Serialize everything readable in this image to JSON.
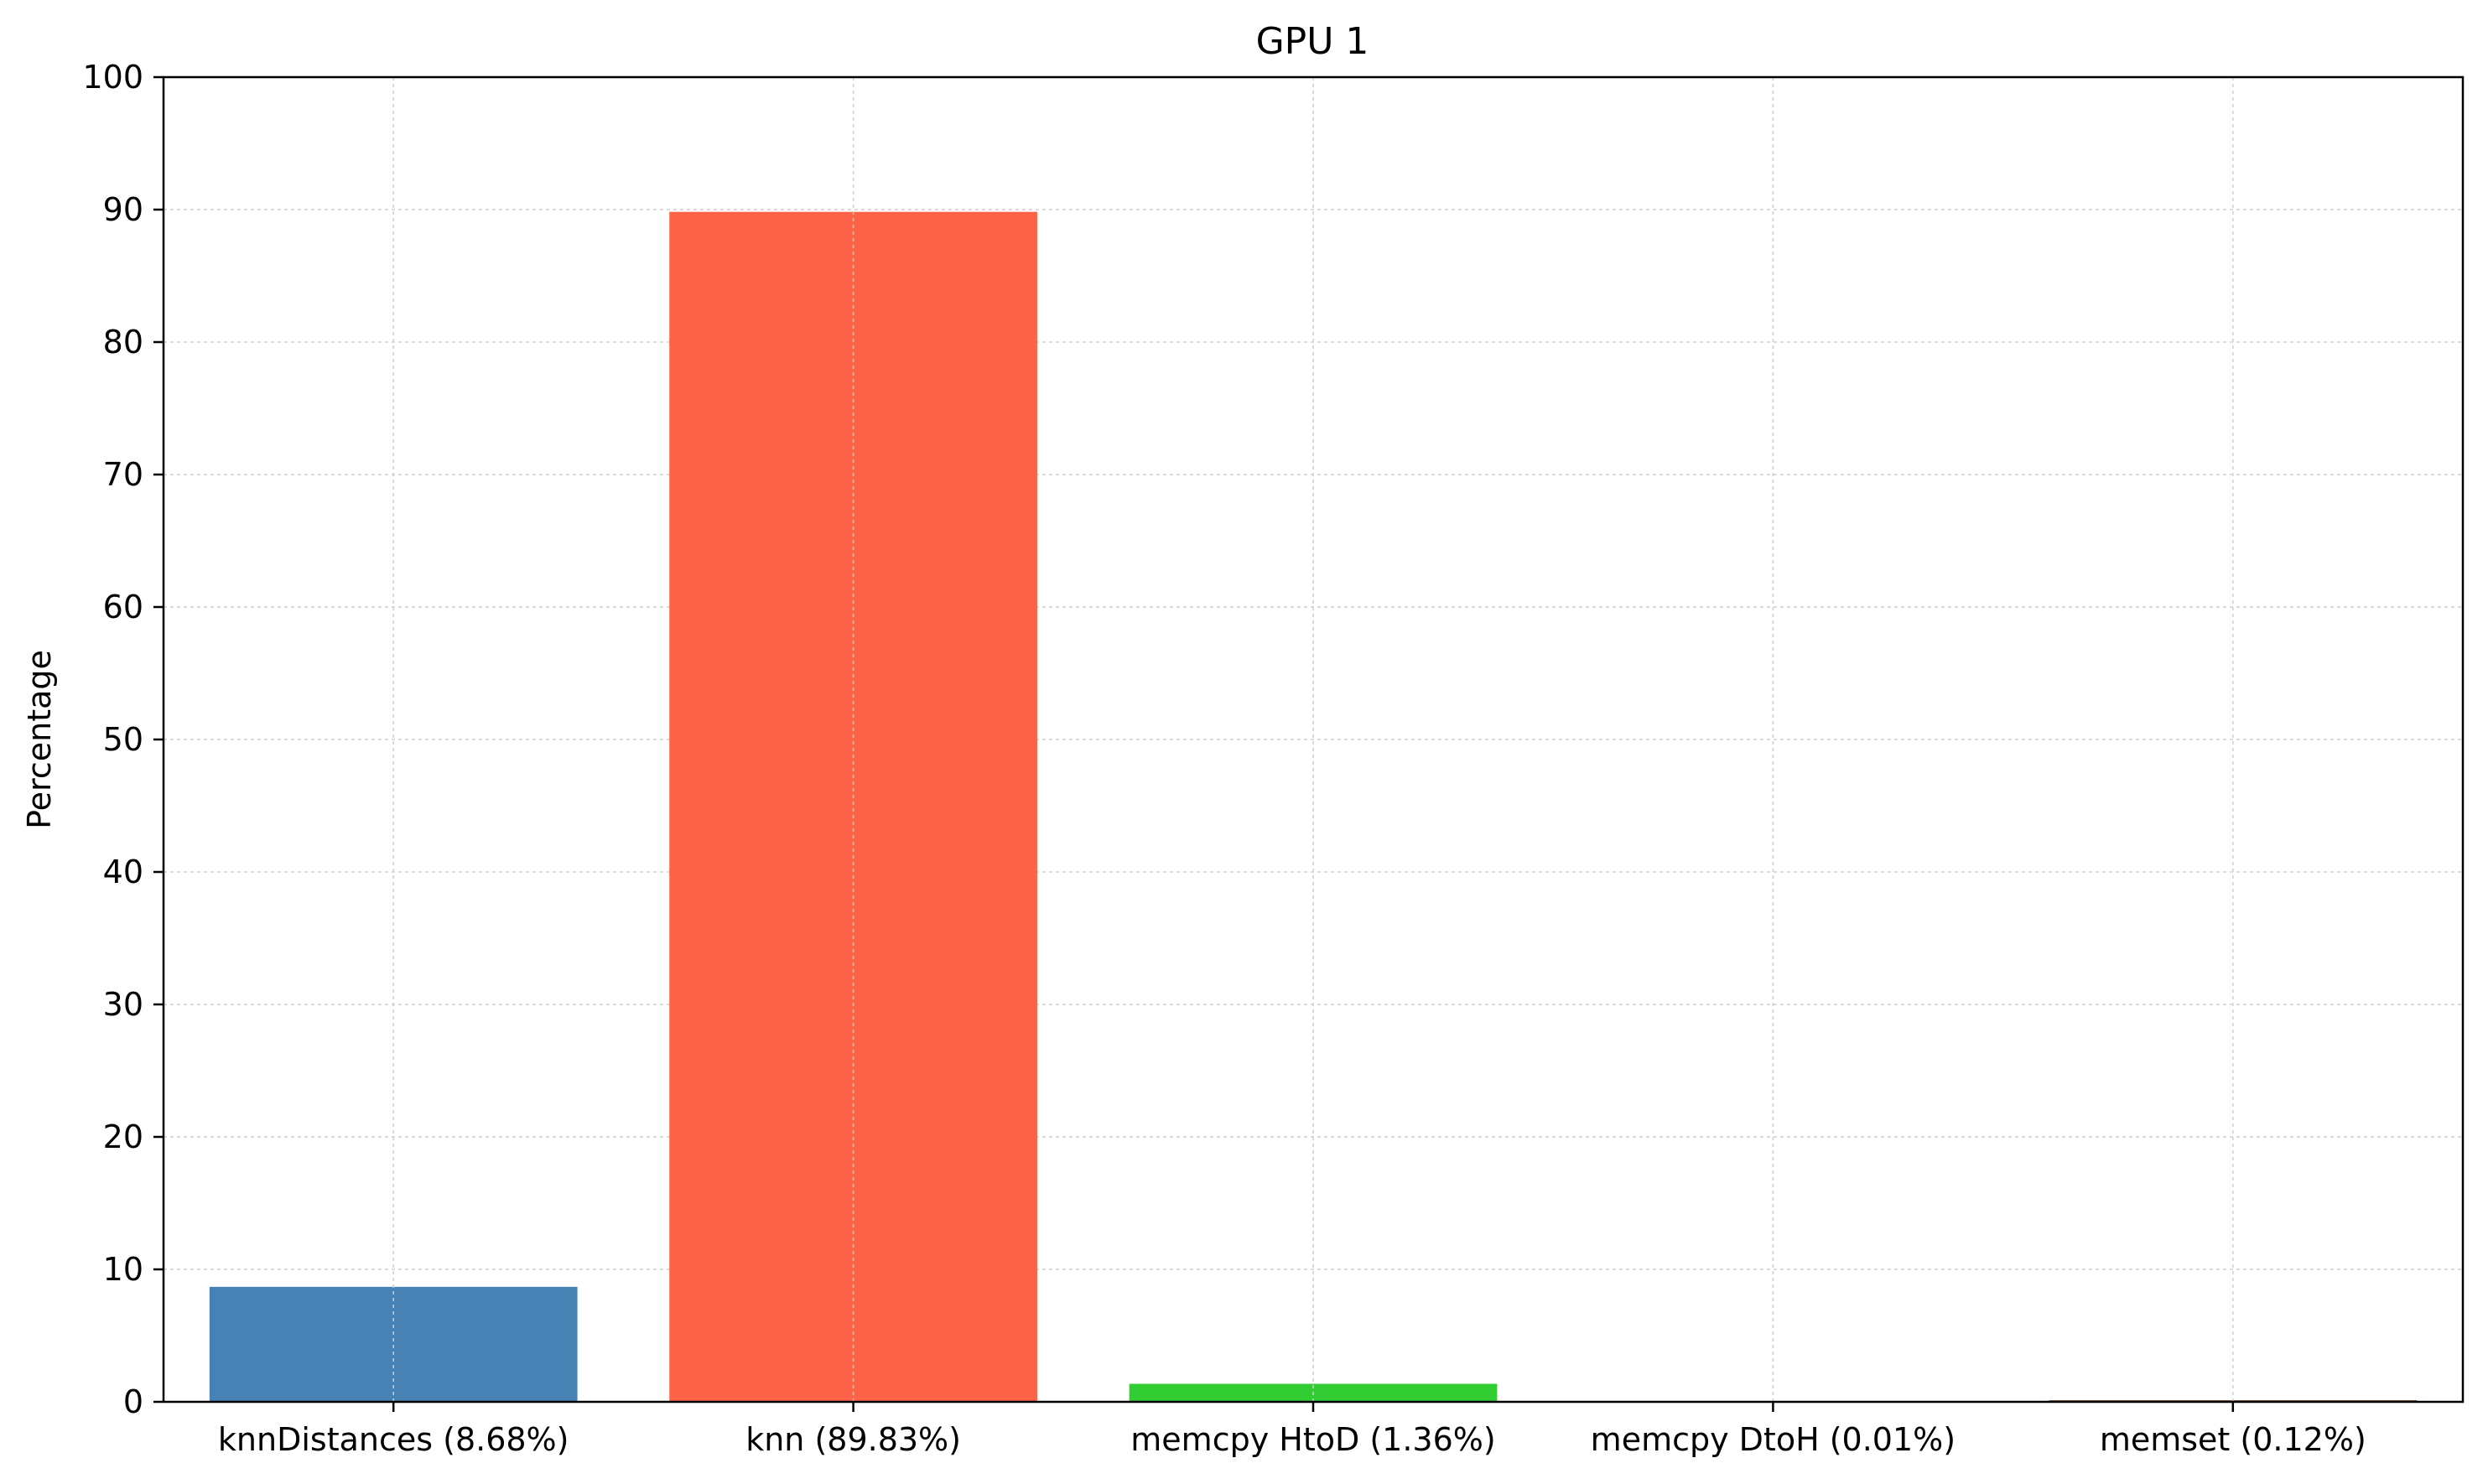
{
  "chart_data": {
    "type": "bar",
    "title": "GPU 1",
    "xlabel": "",
    "ylabel": "Percentage",
    "categories": [
      "knnDistances (8.68%)",
      "knn (89.83%)",
      "memcpy HtoD (1.36%)",
      "memcpy DtoH (0.01%)",
      "memset (0.12%)"
    ],
    "values": [
      8.68,
      89.83,
      1.36,
      0.01,
      0.12
    ],
    "colors": [
      "#4682b4",
      "#ff6347",
      "#32cd32",
      "#ffd700",
      "#8b4513"
    ],
    "ylim": [
      0,
      100
    ],
    "yticks": [
      0,
      10,
      20,
      30,
      40,
      50,
      60,
      70,
      80,
      90,
      100
    ],
    "grid": true,
    "legend": "none"
  }
}
